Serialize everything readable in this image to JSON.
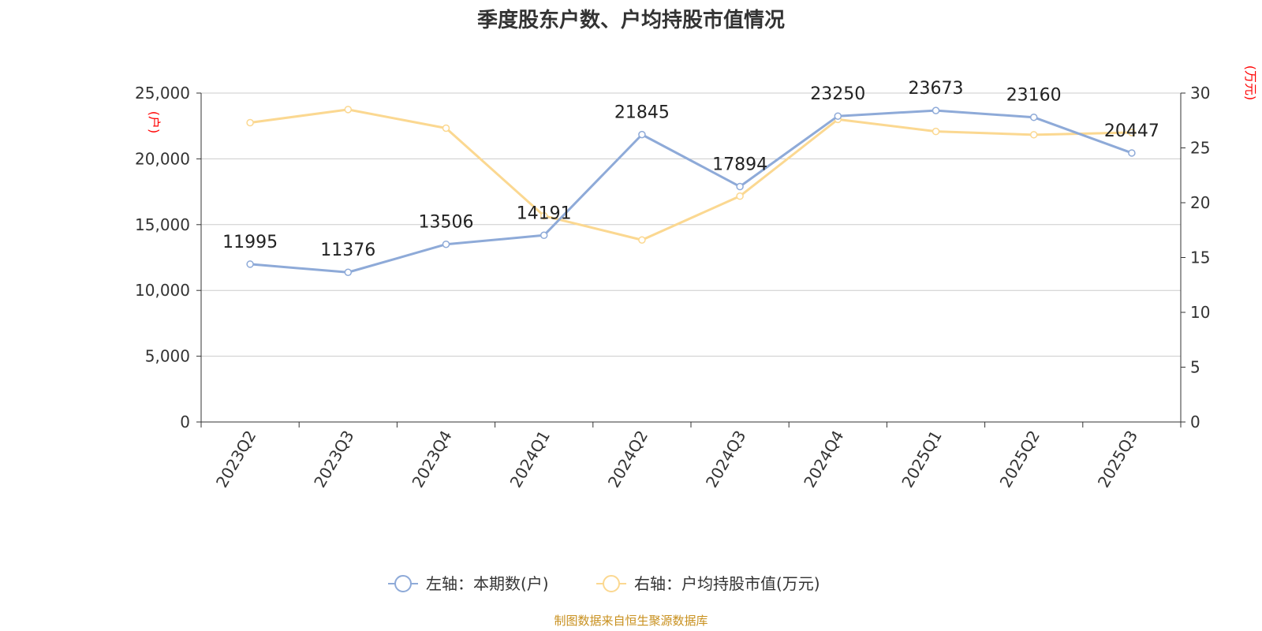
{
  "chart_data": {
    "type": "line",
    "title": "季度股东户数、户均持股市值情况",
    "categories": [
      "2023Q2",
      "2023Q3",
      "2023Q4",
      "2024Q1",
      "2024Q2",
      "2024Q3",
      "2024Q4",
      "2025Q1",
      "2025Q2",
      "2025Q3"
    ],
    "series": [
      {
        "name": "左轴：本期数(户)",
        "axis": "left",
        "color": "#8eaad8",
        "values": [
          11995,
          11376,
          13506,
          14191,
          21845,
          17894,
          23250,
          23673,
          23160,
          20447
        ],
        "data_labels": [
          "11995",
          "11376",
          "13506",
          "14191",
          "21845",
          "17894",
          "23250",
          "23673",
          "23160",
          "20447"
        ]
      },
      {
        "name": "右轴：户均持股市值(万元)",
        "axis": "right",
        "color": "#fbd891",
        "values": [
          27.3,
          28.5,
          26.8,
          18.8,
          16.6,
          20.6,
          27.6,
          26.5,
          26.2,
          26.4
        ]
      }
    ],
    "y_left": {
      "label": "(户)",
      "min": 0,
      "max": 25000,
      "ticks": [
        "0",
        "5,000",
        "10,000",
        "15,000",
        "20,000",
        "25,000"
      ],
      "tick_values": [
        0,
        5000,
        10000,
        15000,
        20000,
        25000
      ]
    },
    "y_right": {
      "label": "(万元)",
      "min": 0,
      "max": 30,
      "ticks": [
        "0",
        "5",
        "10",
        "15",
        "20",
        "25",
        "30"
      ],
      "tick_values": [
        0,
        5,
        10,
        15,
        20,
        25,
        30
      ]
    },
    "grid": true,
    "legend_position": "bottom",
    "source": "制图数据来自恒生聚源数据库",
    "colors": {
      "axis_label": "#ff0000",
      "source": "#c8901e",
      "grid": "#cccccc",
      "axis": "#333333",
      "text": "#333333"
    }
  }
}
